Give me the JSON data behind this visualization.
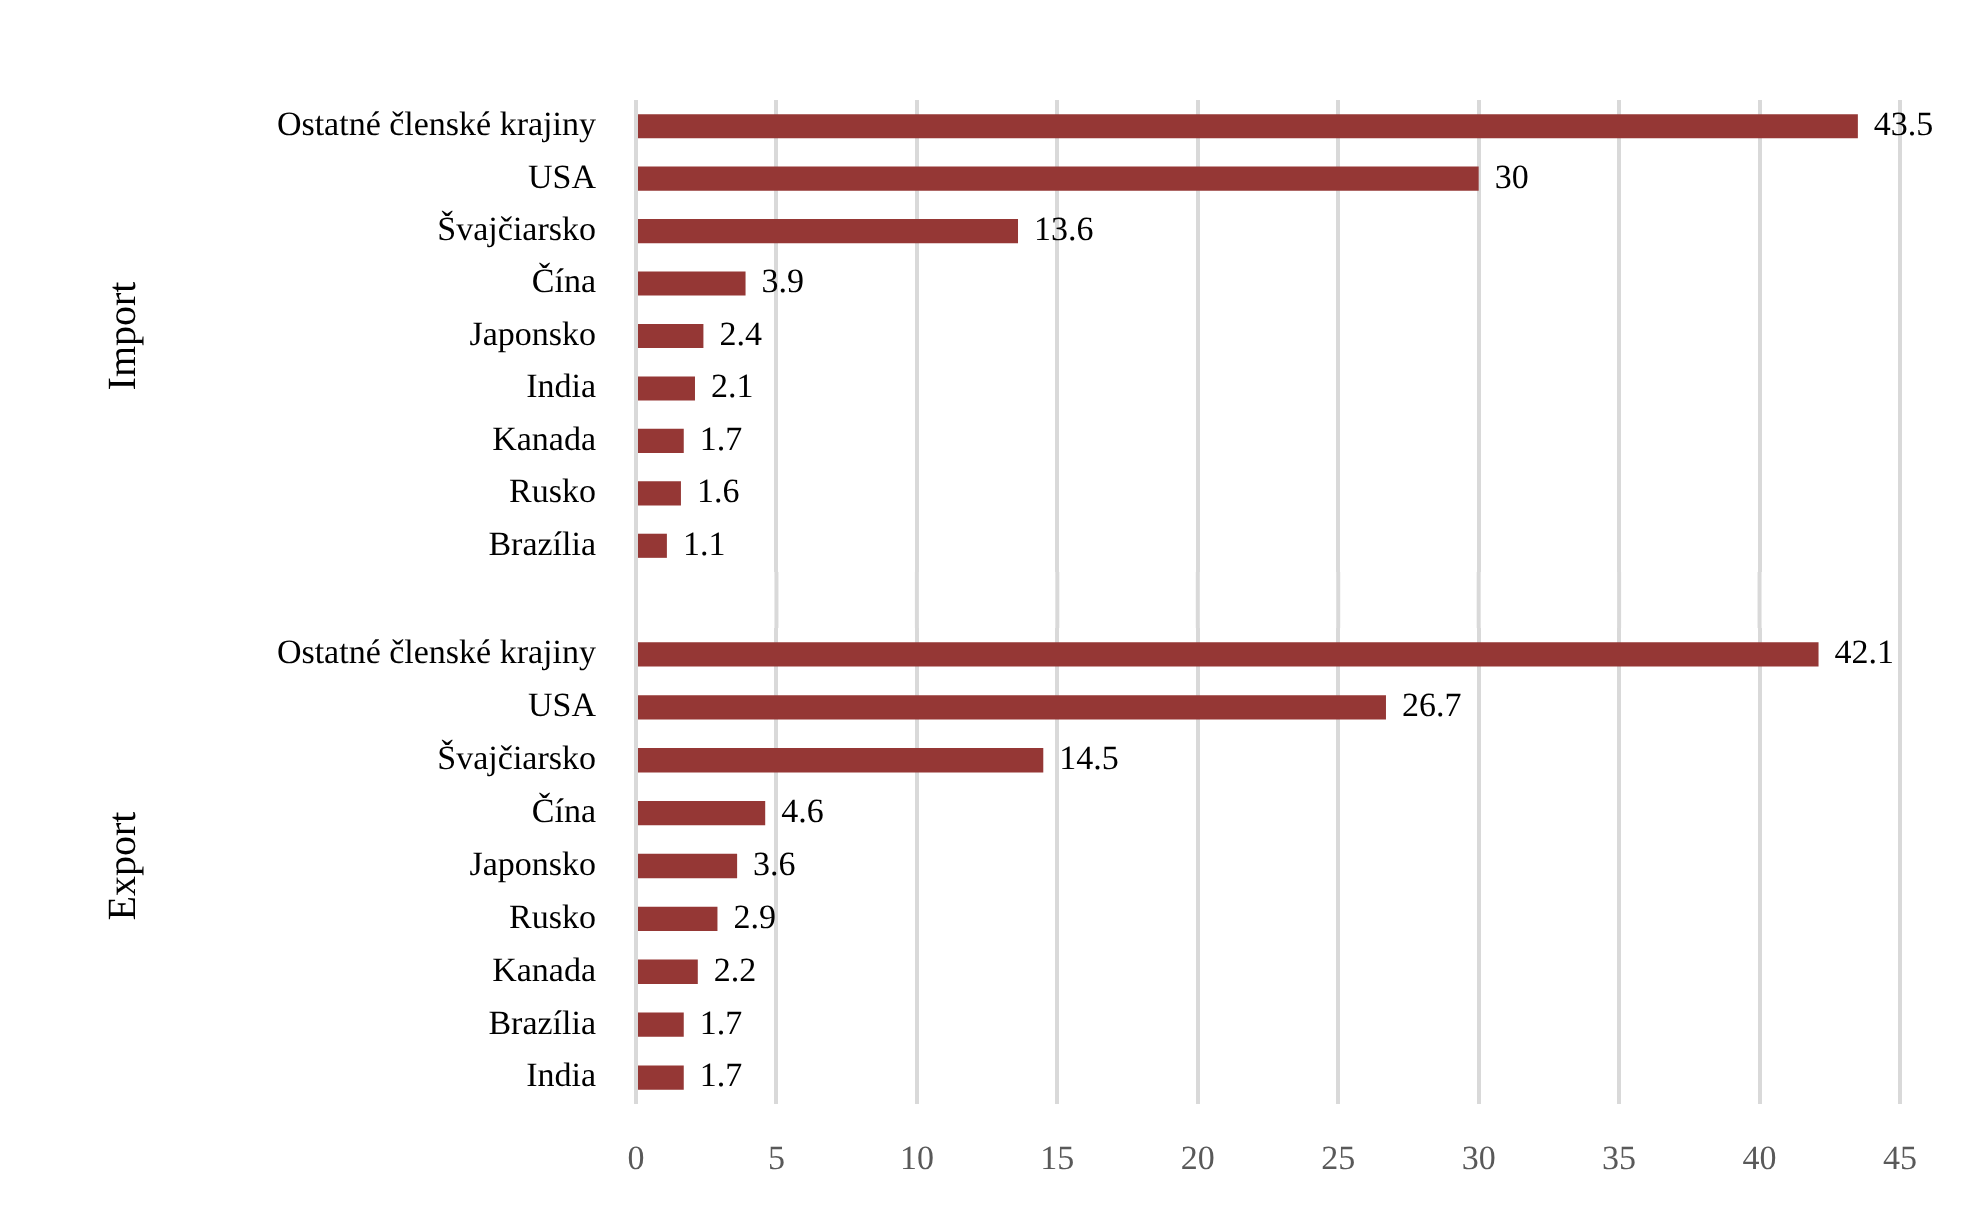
{
  "chart_data": [
    {
      "type": "bar",
      "orientation": "horizontal",
      "ylabel": "Import",
      "categories": [
        "Ostatné členské krajiny",
        "USA",
        "Švajčiarsko",
        "Čína",
        "Japonsko",
        "India",
        "Kanada",
        "Rusko",
        "Brazília"
      ],
      "values": [
        43.5,
        30,
        13.6,
        3.9,
        2.4,
        2.1,
        1.7,
        1.6,
        1.1
      ],
      "color": "#953735",
      "xlim": [
        0,
        45
      ],
      "xticks": [
        0,
        5,
        10,
        15,
        20,
        25,
        30,
        35,
        40,
        45
      ],
      "grid": "x",
      "data_labels": true,
      "tick_labels": "y"
    },
    {
      "type": "bar",
      "orientation": "horizontal",
      "ylabel": "Export",
      "categories": [
        "Ostatné členské krajiny",
        "USA",
        "Švajčiarsko",
        "Čína",
        "Japonsko",
        "Rusko",
        "Kanada",
        "Brazília",
        "India"
      ],
      "values": [
        42.1,
        26.7,
        14.5,
        4.6,
        3.6,
        2.9,
        2.2,
        1.7,
        1.7
      ],
      "color": "#953735",
      "xlim": [
        0,
        45
      ],
      "xticks": [
        0,
        5,
        10,
        15,
        20,
        25,
        30,
        35,
        40,
        45
      ],
      "grid": "x",
      "data_labels": true
    }
  ]
}
